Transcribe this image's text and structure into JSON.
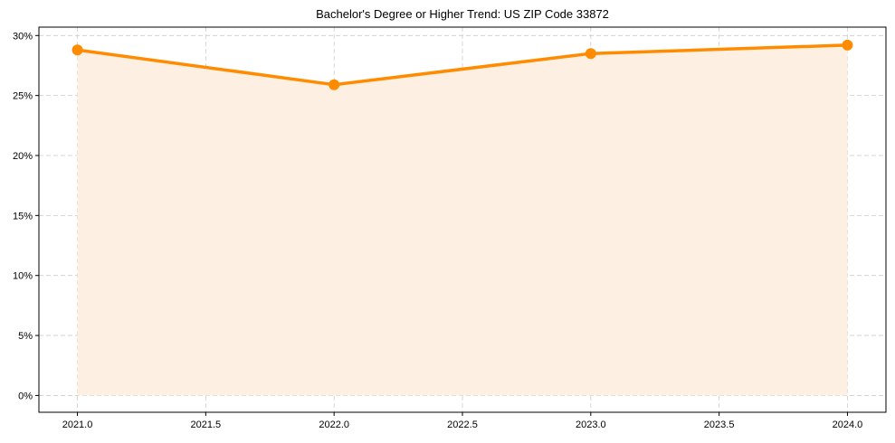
{
  "chart_data": {
    "type": "area",
    "title": "Bachelor's Degree or Higher Trend: US ZIP Code 33872",
    "xlabel": "",
    "ylabel": "",
    "x": [
      2021.0,
      2022.0,
      2023.0,
      2024.0
    ],
    "series": [
      {
        "name": "Bachelor's Degree or Higher",
        "values": [
          28.8,
          25.9,
          28.5,
          29.2
        ],
        "unit": "%"
      }
    ],
    "x_ticks": [
      "2021.0",
      "2021.5",
      "2022.0",
      "2022.5",
      "2023.0",
      "2023.5",
      "2024.0"
    ],
    "x_tick_values": [
      2021.0,
      2021.5,
      2022.0,
      2022.5,
      2023.0,
      2023.5,
      2024.0
    ],
    "y_ticks": [
      "0%",
      "5%",
      "10%",
      "15%",
      "20%",
      "25%",
      "30%"
    ],
    "y_tick_values": [
      0,
      5,
      10,
      15,
      20,
      25,
      30
    ],
    "xlim": [
      2020.85,
      2024.15
    ],
    "ylim": [
      -1.4,
      30.7
    ],
    "grid": true,
    "legend": null,
    "colors": {
      "line": "#ff8c00",
      "fill": "#fdf0e2",
      "grid": "#cccccc"
    }
  }
}
